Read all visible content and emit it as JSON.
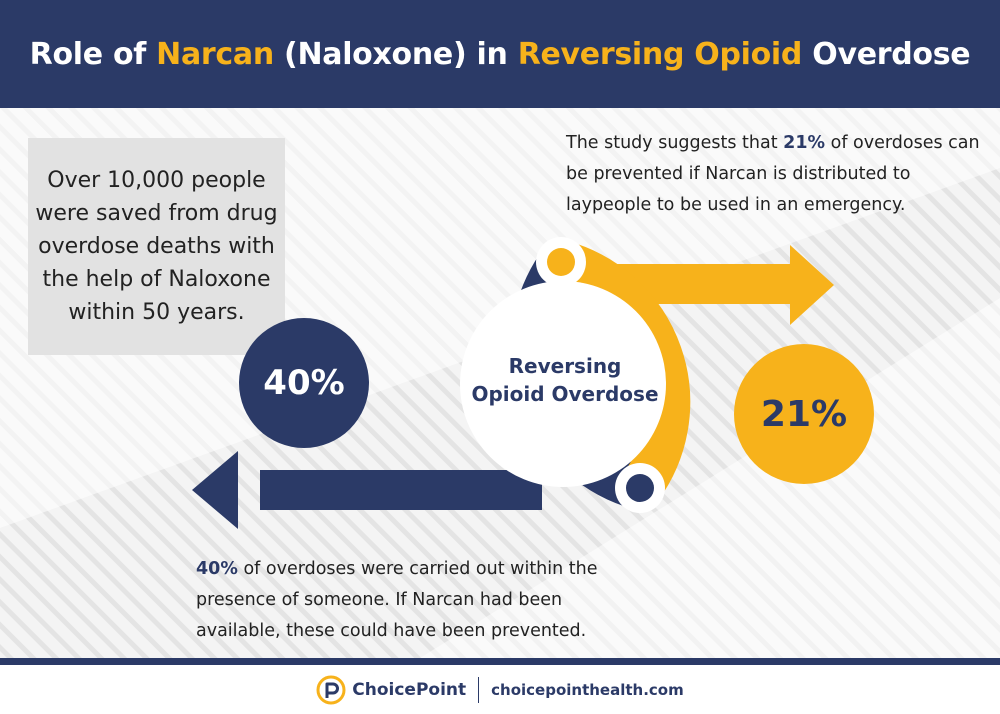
{
  "header": {
    "title_part1": "Role of ",
    "title_accent1": "Narcan",
    "title_part2": " (Naloxone) in ",
    "title_accent2": "Reversing Opioid",
    "title_part3": " Overdose"
  },
  "left_box": {
    "text": "Over 10,000 people were saved from drug overdose deaths with the help of Naloxone within 50 years."
  },
  "top_text": {
    "before": "The study suggests that ",
    "highlight": "21%",
    "after": " of overdoses can be prevented if Narcan is distributed to laypeople to be used in an emergency."
  },
  "bottom_text": {
    "highlight": "40%",
    "after": " of overdoses were carried out within the presence of someone. If Narcan had been available, these could have been prevented."
  },
  "diagram": {
    "center_line1": "Reversing",
    "center_line2": "Opioid Overdose",
    "navy_percent": "40%",
    "gold_percent": "21%"
  },
  "footer": {
    "brand": "ChoicePoint",
    "url": "choicepointhealth.com",
    "logo_icon": "choicepoint-logo-icon"
  },
  "colors": {
    "navy": "#2b3a67",
    "gold": "#f7b21b",
    "panel": "#efefef",
    "box": "#e2e2e2"
  }
}
